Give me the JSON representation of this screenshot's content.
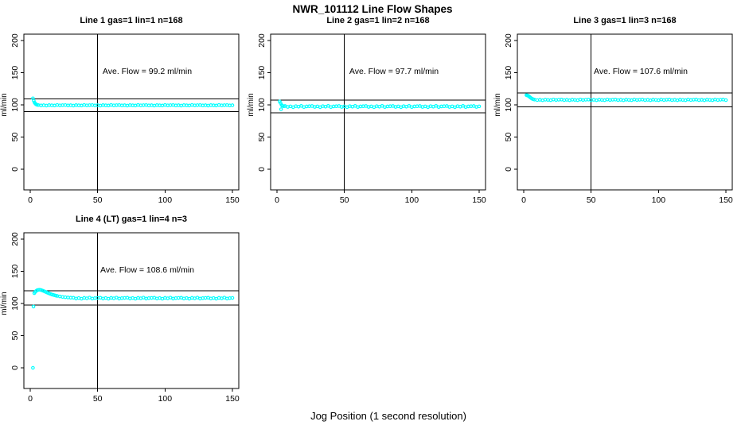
{
  "figure": {
    "title": "NWR_101112  Line Flow Shapes",
    "xlabel": "Jog Position (1 second resolution)"
  },
  "chart_data": [
    {
      "type": "scatter",
      "title": "Line 1 gas=1 lin=1 n=168",
      "ylabel": "ml/min",
      "annotation": "Ave. Flow =  99.2  ml/min",
      "ave_flow_ml_min": 99.2,
      "n": 168,
      "xlim": [
        0,
        150
      ],
      "ylim": [
        0,
        200
      ],
      "xticks": [
        0,
        50,
        100,
        150
      ],
      "yticks": [
        0,
        50,
        100,
        150,
        200
      ],
      "vline_x": 50,
      "hlines": [
        109.1,
        89.3
      ],
      "point_color": "#00ffff",
      "points": [
        [
          2,
          110.2
        ],
        [
          2.6,
          106.5
        ],
        [
          3.2,
          103.6
        ],
        [
          3.8,
          101.8
        ],
        [
          4.4,
          100.7
        ],
        [
          5,
          100.1
        ],
        [
          6,
          99.7
        ],
        [
          8,
          99.1
        ],
        [
          10,
          99.4
        ],
        [
          12,
          98.9
        ],
        [
          14,
          99.6
        ],
        [
          16,
          99.3
        ],
        [
          18,
          99.0
        ],
        [
          20,
          99.8
        ],
        [
          22,
          99.2
        ],
        [
          24,
          99.5
        ],
        [
          26,
          99.7
        ],
        [
          28,
          99.1
        ],
        [
          30,
          99.4
        ],
        [
          32,
          98.9
        ],
        [
          34,
          99.6
        ],
        [
          36,
          99.3
        ],
        [
          38,
          99.0
        ],
        [
          40,
          99.8
        ],
        [
          42,
          99.2
        ],
        [
          44,
          99.5
        ],
        [
          46,
          99.7
        ],
        [
          48,
          99.1
        ],
        [
          50,
          99.4
        ],
        [
          52,
          98.9
        ],
        [
          54,
          99.6
        ],
        [
          56,
          99.3
        ],
        [
          58,
          99.0
        ],
        [
          60,
          99.8
        ],
        [
          62,
          99.2
        ],
        [
          64,
          99.5
        ],
        [
          66,
          99.7
        ],
        [
          68,
          99.1
        ],
        [
          70,
          99.4
        ],
        [
          72,
          98.9
        ],
        [
          74,
          99.6
        ],
        [
          76,
          99.3
        ],
        [
          78,
          99.0
        ],
        [
          80,
          99.8
        ],
        [
          82,
          99.2
        ],
        [
          84,
          99.5
        ],
        [
          86,
          99.7
        ],
        [
          88,
          99.1
        ],
        [
          90,
          99.4
        ],
        [
          92,
          98.9
        ],
        [
          94,
          99.6
        ],
        [
          96,
          99.3
        ],
        [
          98,
          99.0
        ],
        [
          100,
          99.8
        ],
        [
          102,
          99.2
        ],
        [
          104,
          99.5
        ],
        [
          106,
          99.7
        ],
        [
          108,
          99.1
        ],
        [
          110,
          99.4
        ],
        [
          112,
          98.9
        ],
        [
          114,
          99.6
        ],
        [
          116,
          99.3
        ],
        [
          118,
          99.0
        ],
        [
          120,
          99.8
        ],
        [
          122,
          99.2
        ],
        [
          124,
          99.5
        ],
        [
          126,
          99.7
        ],
        [
          128,
          99.1
        ],
        [
          130,
          99.4
        ],
        [
          132,
          98.9
        ],
        [
          134,
          99.6
        ],
        [
          136,
          99.3
        ],
        [
          138,
          99.0
        ],
        [
          140,
          99.8
        ],
        [
          142,
          99.2
        ],
        [
          144,
          99.5
        ],
        [
          146,
          99.7
        ],
        [
          148,
          99.1
        ],
        [
          150,
          99.4
        ]
      ]
    },
    {
      "type": "scatter",
      "title": "Line 2 gas=1 lin=2 n=168",
      "ylabel": "ml/min",
      "annotation": "Ave. Flow =  97.7  ml/min",
      "ave_flow_ml_min": 97.7,
      "n": 168,
      "xlim": [
        0,
        150
      ],
      "ylim": [
        0,
        200
      ],
      "xticks": [
        0,
        50,
        100,
        150
      ],
      "yticks": [
        0,
        50,
        100,
        150,
        200
      ],
      "vline_x": 50,
      "hlines": [
        107.5,
        87.9
      ],
      "point_color": "#00ffff",
      "points": [
        [
          2,
          105.3
        ],
        [
          2.6,
          102.9
        ],
        [
          3,
          93.2
        ],
        [
          3.4,
          99.8
        ],
        [
          4,
          98.5
        ],
        [
          5,
          97.9
        ],
        [
          6,
          98.2
        ],
        [
          8,
          96.8
        ],
        [
          10,
          97.7
        ],
        [
          12,
          96.4
        ],
        [
          14,
          98.0
        ],
        [
          16,
          97.2
        ],
        [
          18,
          98.4
        ],
        [
          20,
          96.6
        ],
        [
          22,
          97.6
        ],
        [
          24,
          97.9
        ],
        [
          26,
          98.2
        ],
        [
          28,
          96.8
        ],
        [
          30,
          97.7
        ],
        [
          32,
          96.4
        ],
        [
          34,
          98.0
        ],
        [
          36,
          97.2
        ],
        [
          38,
          98.4
        ],
        [
          40,
          96.6
        ],
        [
          42,
          97.6
        ],
        [
          44,
          97.9
        ],
        [
          46,
          98.2
        ],
        [
          48,
          96.8
        ],
        [
          50,
          97.7
        ],
        [
          52,
          96.4
        ],
        [
          54,
          98.0
        ],
        [
          56,
          97.2
        ],
        [
          58,
          98.4
        ],
        [
          60,
          96.6
        ],
        [
          62,
          97.6
        ],
        [
          64,
          97.9
        ],
        [
          66,
          98.2
        ],
        [
          68,
          96.8
        ],
        [
          70,
          97.7
        ],
        [
          72,
          96.4
        ],
        [
          74,
          98.0
        ],
        [
          76,
          97.2
        ],
        [
          78,
          98.4
        ],
        [
          80,
          96.6
        ],
        [
          82,
          97.6
        ],
        [
          84,
          97.9
        ],
        [
          86,
          98.2
        ],
        [
          88,
          96.8
        ],
        [
          90,
          97.7
        ],
        [
          92,
          96.4
        ],
        [
          94,
          98.0
        ],
        [
          96,
          97.2
        ],
        [
          98,
          98.4
        ],
        [
          100,
          96.6
        ],
        [
          102,
          97.6
        ],
        [
          104,
          97.9
        ],
        [
          106,
          98.2
        ],
        [
          108,
          96.8
        ],
        [
          110,
          97.7
        ],
        [
          112,
          96.4
        ],
        [
          114,
          98.0
        ],
        [
          116,
          97.2
        ],
        [
          118,
          98.4
        ],
        [
          120,
          96.6
        ],
        [
          122,
          97.6
        ],
        [
          124,
          97.9
        ],
        [
          126,
          98.2
        ],
        [
          128,
          96.8
        ],
        [
          130,
          97.7
        ],
        [
          132,
          96.4
        ],
        [
          134,
          98.0
        ],
        [
          136,
          97.2
        ],
        [
          138,
          98.4
        ],
        [
          140,
          96.6
        ],
        [
          142,
          97.6
        ],
        [
          144,
          97.9
        ],
        [
          146,
          98.2
        ],
        [
          148,
          96.8
        ],
        [
          150,
          97.7
        ]
      ]
    },
    {
      "type": "scatter",
      "title": "Line 3 gas=1 lin=3 n=168",
      "ylabel": "ml/min",
      "annotation": "Ave. Flow =  107.6  ml/min",
      "ave_flow_ml_min": 107.6,
      "n": 168,
      "xlim": [
        0,
        150
      ],
      "ylim": [
        0,
        200
      ],
      "xticks": [
        0,
        50,
        100,
        150
      ],
      "yticks": [
        0,
        50,
        100,
        150,
        200
      ],
      "vline_x": 50,
      "hlines": [
        118.4,
        96.8
      ],
      "point_color": "#00ffff",
      "points": [
        [
          2,
          115.1
        ],
        [
          2.6,
          114.7
        ],
        [
          3.2,
          114.2
        ],
        [
          3.8,
          113.4
        ],
        [
          4.4,
          112.3
        ],
        [
          5,
          111.2
        ],
        [
          6,
          109.8
        ],
        [
          7,
          108.8
        ],
        [
          8,
          108.2
        ],
        [
          10,
          107.4
        ],
        [
          12,
          107.9
        ],
        [
          14,
          107.2
        ],
        [
          16,
          108.1
        ],
        [
          18,
          107.7
        ],
        [
          20,
          107.3
        ],
        [
          22,
          108.3
        ],
        [
          24,
          107.5
        ],
        [
          26,
          108.0
        ],
        [
          28,
          108.2
        ],
        [
          30,
          107.4
        ],
        [
          32,
          107.9
        ],
        [
          34,
          107.2
        ],
        [
          36,
          108.1
        ],
        [
          38,
          107.7
        ],
        [
          40,
          107.3
        ],
        [
          42,
          108.3
        ],
        [
          44,
          107.5
        ],
        [
          46,
          108.0
        ],
        [
          48,
          108.2
        ],
        [
          50,
          107.4
        ],
        [
          52,
          107.9
        ],
        [
          54,
          107.2
        ],
        [
          56,
          108.1
        ],
        [
          58,
          107.7
        ],
        [
          60,
          107.3
        ],
        [
          62,
          108.3
        ],
        [
          64,
          107.5
        ],
        [
          66,
          108.0
        ],
        [
          68,
          108.2
        ],
        [
          70,
          107.4
        ],
        [
          72,
          107.9
        ],
        [
          74,
          107.2
        ],
        [
          76,
          108.1
        ],
        [
          78,
          107.7
        ],
        [
          80,
          107.3
        ],
        [
          82,
          108.3
        ],
        [
          84,
          107.5
        ],
        [
          86,
          108.0
        ],
        [
          88,
          108.2
        ],
        [
          90,
          107.4
        ],
        [
          92,
          107.9
        ],
        [
          94,
          107.2
        ],
        [
          96,
          108.1
        ],
        [
          98,
          107.7
        ],
        [
          100,
          107.3
        ],
        [
          102,
          108.3
        ],
        [
          104,
          107.5
        ],
        [
          106,
          108.0
        ],
        [
          108,
          108.2
        ],
        [
          110,
          107.4
        ],
        [
          112,
          107.9
        ],
        [
          114,
          107.2
        ],
        [
          116,
          108.1
        ],
        [
          118,
          107.7
        ],
        [
          120,
          107.3
        ],
        [
          122,
          108.3
        ],
        [
          124,
          107.5
        ],
        [
          126,
          108.0
        ],
        [
          128,
          108.2
        ],
        [
          130,
          107.4
        ],
        [
          132,
          107.9
        ],
        [
          134,
          107.2
        ],
        [
          136,
          108.1
        ],
        [
          138,
          107.7
        ],
        [
          140,
          107.3
        ],
        [
          142,
          108.3
        ],
        [
          144,
          107.5
        ],
        [
          146,
          108.0
        ],
        [
          148,
          108.2
        ],
        [
          150,
          107.4
        ]
      ]
    },
    {
      "type": "scatter",
      "title": "Line 4 (LT) gas=1 lin=4 n=3",
      "ylabel": "ml/min",
      "annotation": "Ave. Flow =  108.6  ml/min",
      "ave_flow_ml_min": 108.6,
      "n": 3,
      "xlim": [
        0,
        150
      ],
      "ylim": [
        0,
        200
      ],
      "xticks": [
        0,
        50,
        100,
        150
      ],
      "yticks": [
        0,
        50,
        100,
        150,
        200
      ],
      "vline_x": 50,
      "hlines": [
        119.5,
        97.7
      ],
      "point_color": "#00ffff",
      "points": [
        [
          2,
          0
        ],
        [
          2.4,
          95.2
        ],
        [
          3,
          116.0
        ],
        [
          3.6,
          117.8
        ],
        [
          4.2,
          119.2
        ],
        [
          5,
          120.4
        ],
        [
          6,
          121.1
        ],
        [
          7,
          121.3
        ],
        [
          8,
          120.9
        ],
        [
          9,
          120.2
        ],
        [
          10,
          119.3
        ],
        [
          11,
          118.4
        ],
        [
          12,
          117.4
        ],
        [
          13,
          116.5
        ],
        [
          14,
          115.6
        ],
        [
          15,
          114.8
        ],
        [
          16,
          114.0
        ],
        [
          17,
          113.4
        ],
        [
          18,
          112.8
        ],
        [
          19,
          112.2
        ],
        [
          20,
          111.7
        ],
        [
          22,
          110.9
        ],
        [
          24,
          110.2
        ],
        [
          26,
          109.7
        ],
        [
          28,
          109.3
        ],
        [
          30,
          109.0
        ],
        [
          32,
          108.9
        ],
        [
          34,
          107.7
        ],
        [
          36,
          108.5
        ],
        [
          38,
          107.4
        ],
        [
          40,
          108.7
        ],
        [
          42,
          108.0
        ],
        [
          44,
          109.1
        ],
        [
          46,
          107.6
        ],
        [
          48,
          108.3
        ],
        [
          50,
          108.6
        ],
        [
          52,
          108.9
        ],
        [
          54,
          107.7
        ],
        [
          56,
          108.5
        ],
        [
          58,
          107.4
        ],
        [
          60,
          108.7
        ],
        [
          62,
          108.0
        ],
        [
          64,
          109.1
        ],
        [
          66,
          107.6
        ],
        [
          68,
          108.3
        ],
        [
          70,
          108.6
        ],
        [
          72,
          108.9
        ],
        [
          74,
          107.7
        ],
        [
          76,
          108.5
        ],
        [
          78,
          107.4
        ],
        [
          80,
          108.7
        ],
        [
          82,
          108.0
        ],
        [
          84,
          109.1
        ],
        [
          86,
          107.6
        ],
        [
          88,
          108.3
        ],
        [
          90,
          108.6
        ],
        [
          92,
          108.9
        ],
        [
          94,
          107.7
        ],
        [
          96,
          108.5
        ],
        [
          98,
          107.4
        ],
        [
          100,
          108.7
        ],
        [
          102,
          108.0
        ],
        [
          104,
          109.1
        ],
        [
          106,
          107.6
        ],
        [
          108,
          108.3
        ],
        [
          110,
          108.6
        ],
        [
          112,
          108.9
        ],
        [
          114,
          107.7
        ],
        [
          116,
          108.5
        ],
        [
          118,
          107.4
        ],
        [
          120,
          108.7
        ],
        [
          122,
          108.0
        ],
        [
          124,
          109.1
        ],
        [
          126,
          107.6
        ],
        [
          128,
          108.3
        ],
        [
          130,
          108.6
        ],
        [
          132,
          108.9
        ],
        [
          134,
          107.7
        ],
        [
          136,
          108.5
        ],
        [
          138,
          107.4
        ],
        [
          140,
          108.7
        ],
        [
          142,
          108.0
        ],
        [
          144,
          109.1
        ],
        [
          146,
          107.6
        ],
        [
          148,
          108.3
        ],
        [
          150,
          108.6
        ]
      ]
    }
  ]
}
